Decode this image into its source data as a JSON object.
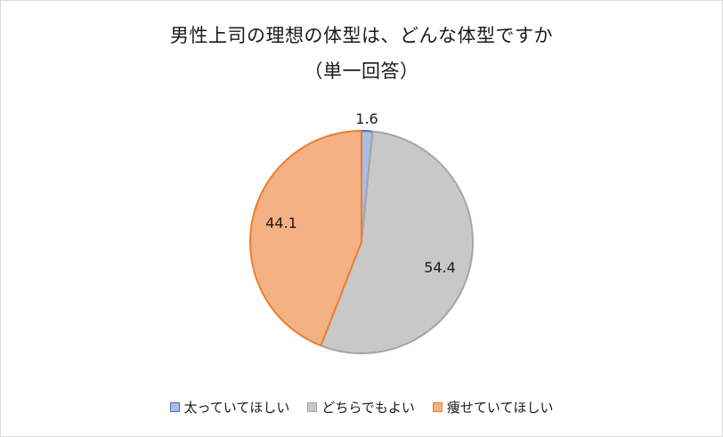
{
  "chart_data": {
    "type": "pie",
    "title": "男性上司の理想の体型は、どんな体型ですか",
    "subtitle": "（単一回答）",
    "slices": [
      {
        "label": "太っていてほしい",
        "value": 1.6,
        "value_label": "1.6",
        "color": "#a9bde8",
        "edge": "#4472c4"
      },
      {
        "label": "どちらでもよい",
        "value": 54.4,
        "value_label": "54.4",
        "color": "#c8c8c8",
        "edge": "#a5a5a5"
      },
      {
        "label": "痩せていてほしい",
        "value": 44.1,
        "value_label": "44.1",
        "color": "#f4b183",
        "edge": "#ed7d31"
      }
    ],
    "legend_position": "bottom"
  }
}
